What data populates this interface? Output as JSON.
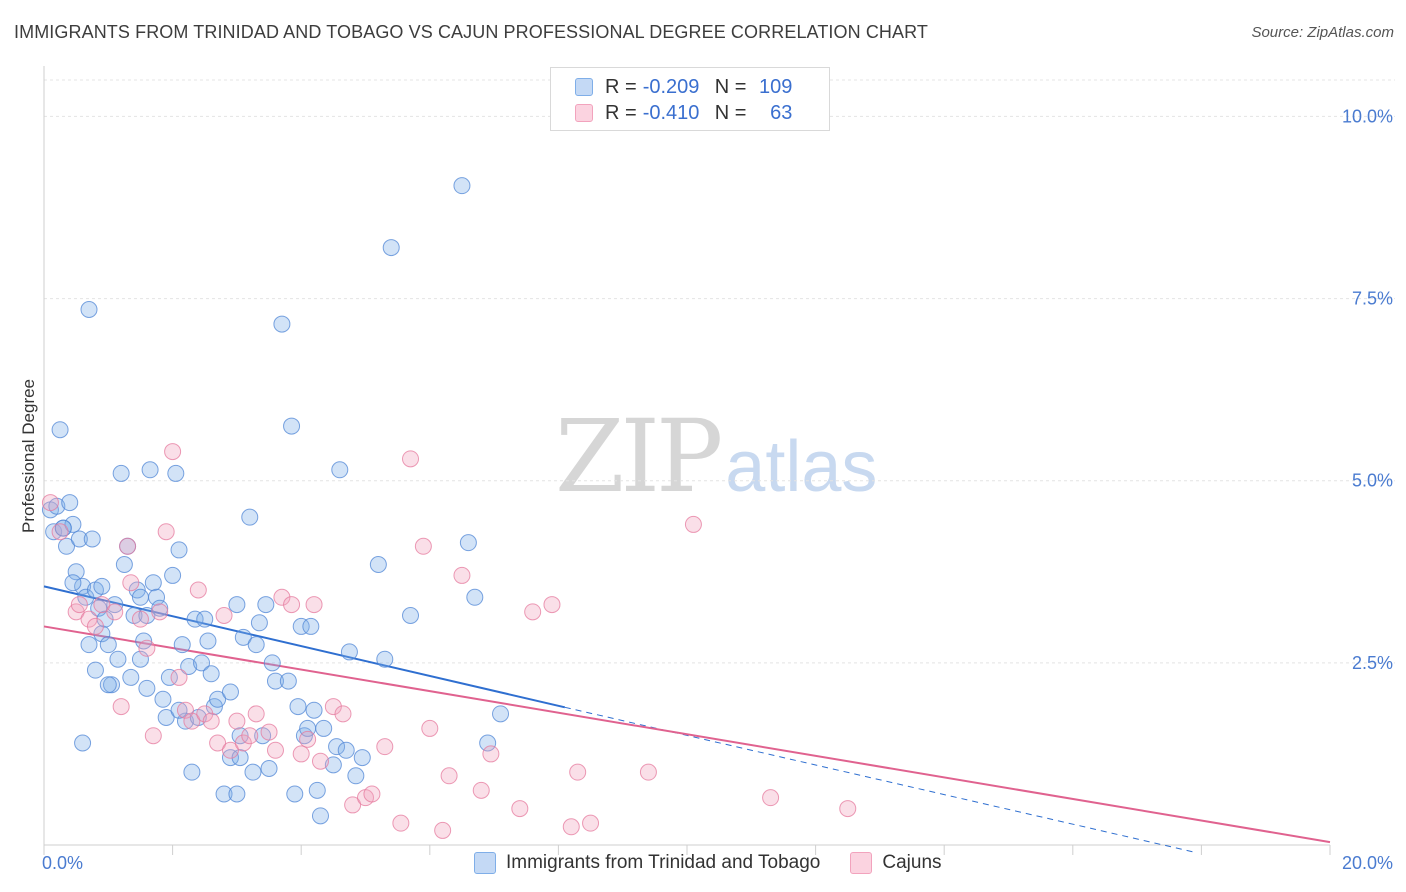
{
  "header": {
    "title": "IMMIGRANTS FROM TRINIDAD AND TOBAGO VS CAJUN PROFESSIONAL DEGREE CORRELATION CHART",
    "source": "Source: ZipAtlas.com"
  },
  "watermark": {
    "zip": "ZIP",
    "atlas": "atlas"
  },
  "legend": {
    "r_label": "R =",
    "n_label": "N =",
    "rows": [
      {
        "r": "-0.209",
        "n": "109",
        "color": "#7faee8"
      },
      {
        "r": "-0.410",
        "n": "63",
        "color": "#f2a3bd"
      }
    ]
  },
  "bottom_legend": [
    {
      "label": "Immigrants from Trinidad and Tobago",
      "color": "#7faee8"
    },
    {
      "label": "Cajuns",
      "color": "#f2a3bd"
    }
  ],
  "chart_data": {
    "type": "scatter",
    "title": "IMMIGRANTS FROM TRINIDAD AND TOBAGO VS CAJUN PROFESSIONAL DEGREE CORRELATION CHART",
    "xlabel": "",
    "ylabel": "Professional Degree",
    "xlim": [
      0,
      20
    ],
    "ylim": [
      0,
      10.5
    ],
    "x_tick_labels": [
      "0.0%",
      "20.0%"
    ],
    "y_ticks": [
      2.5,
      5.0,
      7.5,
      10.0
    ],
    "y_tick_labels": [
      "2.5%",
      "5.0%",
      "7.5%",
      "10.0%"
    ],
    "series": [
      {
        "name": "Immigrants from Trinidad and Tobago",
        "color": "#7faee8",
        "stroke": "#4f86d6",
        "trend_color": "#2f6fd0",
        "trend": {
          "x0": 0,
          "y0": 3.55,
          "x1": 8.1,
          "y1": 1.89,
          "dash_to_x": 17.9,
          "dash_to_y": -0.1
        },
        "points": [
          [
            0.1,
            4.6
          ],
          [
            0.15,
            4.3
          ],
          [
            0.2,
            4.65
          ],
          [
            0.25,
            5.7
          ],
          [
            0.3,
            4.35
          ],
          [
            0.35,
            4.1
          ],
          [
            0.4,
            4.7
          ],
          [
            0.45,
            4.4
          ],
          [
            0.5,
            3.75
          ],
          [
            0.55,
            4.2
          ],
          [
            0.6,
            3.55
          ],
          [
            0.65,
            3.4
          ],
          [
            0.7,
            7.35
          ],
          [
            0.75,
            4.2
          ],
          [
            0.8,
            3.5
          ],
          [
            0.85,
            3.25
          ],
          [
            0.9,
            2.9
          ],
          [
            0.95,
            3.1
          ],
          [
            1.0,
            2.75
          ],
          [
            1.05,
            2.2
          ],
          [
            0.9,
            3.55
          ],
          [
            0.7,
            2.75
          ],
          [
            1.1,
            3.3
          ],
          [
            1.15,
            2.55
          ],
          [
            1.2,
            5.1
          ],
          [
            1.25,
            3.85
          ],
          [
            1.3,
            4.1
          ],
          [
            1.35,
            2.3
          ],
          [
            1.4,
            3.15
          ],
          [
            1.45,
            3.5
          ],
          [
            1.5,
            2.55
          ],
          [
            1.55,
            2.8
          ],
          [
            1.6,
            3.15
          ],
          [
            1.65,
            5.15
          ],
          [
            1.7,
            3.6
          ],
          [
            1.75,
            3.4
          ],
          [
            1.8,
            3.25
          ],
          [
            1.85,
            2.0
          ],
          [
            1.9,
            1.75
          ],
          [
            1.95,
            2.3
          ],
          [
            1.6,
            2.15
          ],
          [
            2.0,
            3.7
          ],
          [
            2.05,
            5.1
          ],
          [
            2.1,
            4.05
          ],
          [
            2.15,
            2.75
          ],
          [
            2.2,
            1.7
          ],
          [
            2.25,
            2.45
          ],
          [
            2.3,
            1.0
          ],
          [
            2.35,
            3.1
          ],
          [
            2.4,
            1.75
          ],
          [
            2.45,
            2.5
          ],
          [
            2.5,
            3.1
          ],
          [
            2.55,
            2.8
          ],
          [
            2.6,
            2.35
          ],
          [
            2.65,
            1.9
          ],
          [
            2.7,
            2.0
          ],
          [
            2.8,
            0.7
          ],
          [
            2.9,
            1.2
          ],
          [
            3.0,
            0.7
          ],
          [
            3.05,
            1.2
          ],
          [
            3.1,
            2.85
          ],
          [
            3.2,
            4.5
          ],
          [
            3.25,
            1.0
          ],
          [
            3.3,
            2.75
          ],
          [
            3.35,
            3.05
          ],
          [
            3.4,
            1.5
          ],
          [
            3.45,
            3.3
          ],
          [
            3.5,
            1.05
          ],
          [
            3.55,
            2.5
          ],
          [
            3.6,
            2.25
          ],
          [
            3.7,
            7.15
          ],
          [
            3.8,
            2.25
          ],
          [
            3.85,
            5.75
          ],
          [
            3.9,
            0.7
          ],
          [
            3.95,
            1.9
          ],
          [
            4.0,
            3.0
          ],
          [
            4.05,
            1.5
          ],
          [
            4.1,
            1.6
          ],
          [
            4.15,
            3.0
          ],
          [
            4.2,
            1.85
          ],
          [
            4.25,
            0.75
          ],
          [
            4.3,
            0.4
          ],
          [
            4.35,
            1.6
          ],
          [
            4.5,
            1.1
          ],
          [
            4.55,
            1.35
          ],
          [
            4.6,
            5.15
          ],
          [
            4.75,
            2.65
          ],
          [
            4.85,
            0.95
          ],
          [
            4.95,
            1.2
          ],
          [
            5.2,
            3.85
          ],
          [
            5.3,
            2.55
          ],
          [
            5.4,
            8.2
          ],
          [
            5.7,
            3.15
          ],
          [
            6.5,
            9.05
          ],
          [
            6.6,
            4.15
          ],
          [
            6.7,
            3.4
          ],
          [
            6.9,
            1.4
          ],
          [
            7.1,
            1.8
          ],
          [
            4.7,
            1.3
          ],
          [
            3.05,
            1.5
          ],
          [
            0.45,
            3.6
          ],
          [
            1.0,
            2.2
          ],
          [
            2.1,
            1.85
          ],
          [
            1.5,
            3.4
          ],
          [
            0.8,
            2.4
          ],
          [
            3.0,
            3.3
          ],
          [
            0.3,
            4.35
          ],
          [
            0.6,
            1.4
          ],
          [
            2.9,
            2.1
          ]
        ]
      },
      {
        "name": "Cajuns",
        "color": "#f2a3bd",
        "stroke": "#e6799e",
        "trend_color": "#e0628f",
        "trend": {
          "x0": 0,
          "y0": 3.0,
          "x1": 20,
          "y1": 0.04
        },
        "points": [
          [
            0.1,
            4.7
          ],
          [
            0.25,
            4.3
          ],
          [
            0.5,
            3.2
          ],
          [
            0.55,
            3.3
          ],
          [
            0.7,
            3.1
          ],
          [
            0.8,
            3.0
          ],
          [
            0.9,
            3.3
          ],
          [
            1.1,
            3.2
          ],
          [
            1.2,
            1.9
          ],
          [
            1.3,
            4.1
          ],
          [
            1.35,
            3.6
          ],
          [
            1.5,
            3.1
          ],
          [
            1.6,
            2.7
          ],
          [
            1.7,
            1.5
          ],
          [
            1.8,
            3.2
          ],
          [
            1.9,
            4.3
          ],
          [
            2.0,
            5.4
          ],
          [
            2.1,
            2.3
          ],
          [
            2.2,
            1.85
          ],
          [
            2.3,
            1.7
          ],
          [
            2.4,
            3.5
          ],
          [
            2.5,
            1.8
          ],
          [
            2.6,
            1.7
          ],
          [
            2.7,
            1.4
          ],
          [
            2.8,
            3.15
          ],
          [
            2.9,
            1.3
          ],
          [
            3.0,
            1.7
          ],
          [
            3.1,
            1.4
          ],
          [
            3.2,
            1.5
          ],
          [
            3.3,
            1.8
          ],
          [
            3.5,
            1.55
          ],
          [
            3.6,
            1.3
          ],
          [
            3.7,
            3.4
          ],
          [
            3.85,
            3.3
          ],
          [
            4.0,
            1.25
          ],
          [
            4.1,
            1.45
          ],
          [
            4.2,
            3.3
          ],
          [
            4.3,
            1.15
          ],
          [
            4.5,
            1.9
          ],
          [
            4.65,
            1.8
          ],
          [
            4.8,
            0.55
          ],
          [
            5.0,
            0.65
          ],
          [
            5.1,
            0.7
          ],
          [
            5.3,
            1.35
          ],
          [
            5.55,
            0.3
          ],
          [
            5.7,
            5.3
          ],
          [
            5.9,
            4.1
          ],
          [
            6.0,
            1.6
          ],
          [
            6.2,
            0.2
          ],
          [
            6.3,
            0.95
          ],
          [
            6.5,
            3.7
          ],
          [
            6.8,
            0.75
          ],
          [
            6.95,
            1.25
          ],
          [
            7.4,
            0.5
          ],
          [
            7.6,
            3.2
          ],
          [
            7.9,
            3.3
          ],
          [
            8.2,
            0.25
          ],
          [
            8.3,
            1.0
          ],
          [
            8.5,
            0.3
          ],
          [
            9.4,
            1.0
          ],
          [
            10.1,
            4.4
          ],
          [
            11.3,
            0.65
          ],
          [
            12.5,
            0.5
          ]
        ]
      }
    ]
  }
}
